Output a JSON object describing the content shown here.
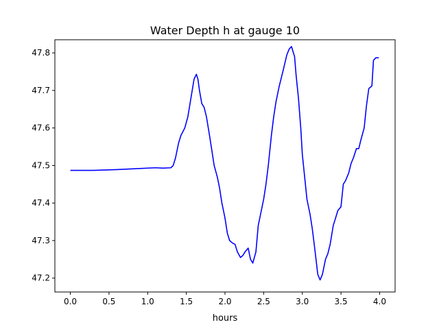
{
  "chart_data": {
    "type": "line",
    "title": "Water Depth h at gauge 10",
    "xlabel": "hours",
    "ylabel": "",
    "xlim": [
      -0.2,
      4.2
    ],
    "ylim": [
      47.163,
      47.835
    ],
    "x_ticks": [
      0.0,
      0.5,
      1.0,
      1.5,
      2.0,
      2.5,
      3.0,
      3.5,
      4.0
    ],
    "x_tick_labels": [
      "0.0",
      "0.5",
      "1.0",
      "1.5",
      "2.0",
      "2.5",
      "3.0",
      "3.5",
      "4.0"
    ],
    "y_ticks": [
      47.2,
      47.3,
      47.4,
      47.5,
      47.6,
      47.7,
      47.8
    ],
    "y_tick_labels": [
      "47.2",
      "47.3",
      "47.4",
      "47.5",
      "47.6",
      "47.7",
      "47.8"
    ],
    "grid": false,
    "line_color": "#0000ff",
    "series": [
      {
        "name": "",
        "x": [
          0.0,
          0.3,
          0.6,
          0.9,
          1.1,
          1.2,
          1.3,
          1.33,
          1.36,
          1.4,
          1.43,
          1.48,
          1.52,
          1.56,
          1.6,
          1.63,
          1.65,
          1.67,
          1.7,
          1.73,
          1.76,
          1.8,
          1.83,
          1.86,
          1.9,
          1.93,
          1.96,
          2.0,
          2.03,
          2.06,
          2.1,
          2.13,
          2.16,
          2.2,
          2.23,
          2.26,
          2.3,
          2.33,
          2.36,
          2.4,
          2.43,
          2.46,
          2.5,
          2.53,
          2.56,
          2.6,
          2.63,
          2.66,
          2.7,
          2.73,
          2.76,
          2.8,
          2.83,
          2.86,
          2.9,
          2.92,
          2.95,
          2.98,
          3.0,
          3.03,
          3.06,
          3.1,
          3.13,
          3.16,
          3.2,
          3.23,
          3.26,
          3.3,
          3.33,
          3.36,
          3.4,
          3.43,
          3.46,
          3.5,
          3.53,
          3.56,
          3.6,
          3.63,
          3.66,
          3.7,
          3.73,
          3.76,
          3.8,
          3.83,
          3.86,
          3.9,
          3.92,
          3.95,
          3.97,
          3.99
        ],
        "y": [
          47.487,
          47.487,
          47.489,
          47.492,
          47.494,
          47.493,
          47.494,
          47.5,
          47.52,
          47.56,
          47.58,
          47.6,
          47.63,
          47.68,
          47.73,
          47.743,
          47.73,
          47.7,
          47.665,
          47.655,
          47.63,
          47.58,
          47.54,
          47.5,
          47.47,
          47.44,
          47.4,
          47.36,
          47.32,
          47.3,
          47.293,
          47.29,
          47.27,
          47.255,
          47.26,
          47.27,
          47.28,
          47.25,
          47.24,
          47.27,
          47.34,
          47.37,
          47.41,
          47.45,
          47.5,
          47.58,
          47.63,
          47.67,
          47.71,
          47.735,
          47.76,
          47.795,
          47.81,
          47.817,
          47.79,
          47.74,
          47.68,
          47.6,
          47.53,
          47.47,
          47.41,
          47.37,
          47.33,
          47.28,
          47.21,
          47.195,
          47.21,
          47.25,
          47.265,
          47.29,
          47.34,
          47.36,
          47.38,
          47.39,
          47.45,
          47.46,
          47.48,
          47.505,
          47.52,
          47.545,
          47.545,
          47.57,
          47.6,
          47.66,
          47.705,
          47.712,
          47.78,
          47.787,
          47.787,
          47.787
        ]
      }
    ]
  }
}
